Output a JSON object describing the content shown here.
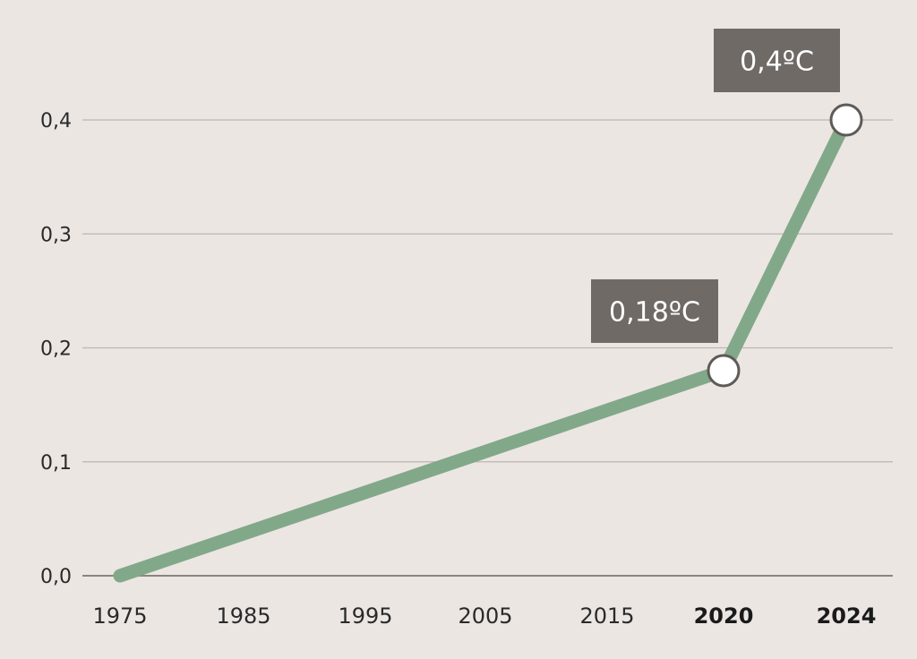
{
  "chart_data": {
    "type": "line",
    "x": [
      1975,
      2020,
      2024
    ],
    "series": [
      {
        "values": [
          0.0,
          0.18,
          0.4
        ]
      }
    ],
    "ylim": [
      0,
      0.4
    ],
    "y_ticks": [
      "0,0",
      "0,1",
      "0,2",
      "0,3",
      "0,4"
    ],
    "y_tick_values": [
      0,
      0.1,
      0.2,
      0.3,
      0.4
    ],
    "x_ticks": [
      {
        "label": "1975",
        "value": 1975,
        "bold": false
      },
      {
        "label": "1985",
        "value": 1985,
        "bold": false
      },
      {
        "label": "1995",
        "value": 1995,
        "bold": false
      },
      {
        "label": "2005",
        "value": 2005,
        "bold": false
      },
      {
        "label": "2015",
        "value": 2015,
        "bold": false
      },
      {
        "label": "2020",
        "value": 2020,
        "bold": true
      },
      {
        "label": "2024",
        "value": 2024,
        "bold": true
      }
    ],
    "annotations": [
      {
        "x": 2020,
        "y": 0.18,
        "label": "0,18ºC"
      },
      {
        "x": 2024,
        "y": 0.4,
        "label": "0,4ºC"
      }
    ],
    "grid": true,
    "colors": {
      "background": "#ece6e2",
      "line": "#82a88a",
      "grid": "#bdb6b2",
      "axis": "#8a8480",
      "callout_bg": "#6f6a66",
      "marker_fill": "#ffffff",
      "marker_stroke": "#5e5a57"
    }
  }
}
